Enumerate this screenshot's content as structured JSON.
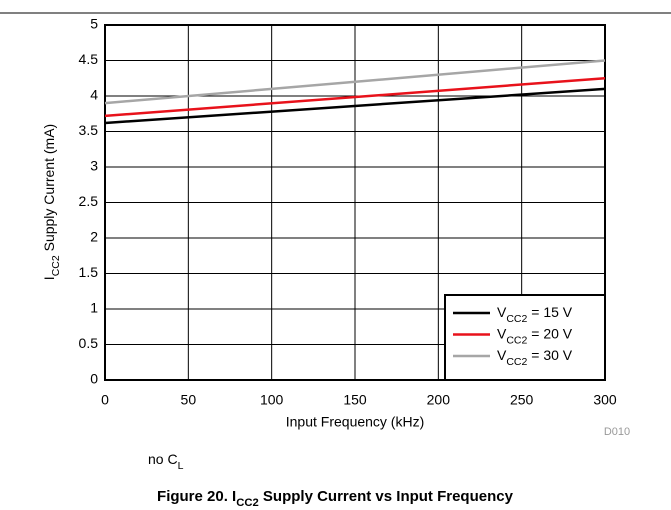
{
  "chart_data": {
    "type": "line",
    "x": [
      0,
      300
    ],
    "series": [
      {
        "name": "VCC2 = 15 V",
        "color": "#000000",
        "values": [
          3.62,
          4.1
        ]
      },
      {
        "name": "VCC2 = 20 V",
        "color": "#e8121b",
        "values": [
          3.72,
          4.25
        ]
      },
      {
        "name": "VCC2 = 30 V",
        "color": "#a6a6a6",
        "values": [
          3.9,
          4.5
        ]
      }
    ],
    "xlim": [
      0,
      300
    ],
    "xticks": [
      0,
      50,
      100,
      150,
      200,
      250,
      300
    ],
    "ylim": [
      0,
      5
    ],
    "yticks": [
      0,
      0.5,
      1,
      1.5,
      2,
      2.5,
      3,
      3.5,
      4,
      4.5,
      5
    ],
    "xlabel": "Input Frequency (kHz)",
    "ylabel": "ICC2 Supply Current (mA)",
    "grid": true,
    "legend": "lower right",
    "code": "D010",
    "note": "no CL",
    "caption": "Figure 20. ICC2 Supply Current vs Input Frequency"
  }
}
